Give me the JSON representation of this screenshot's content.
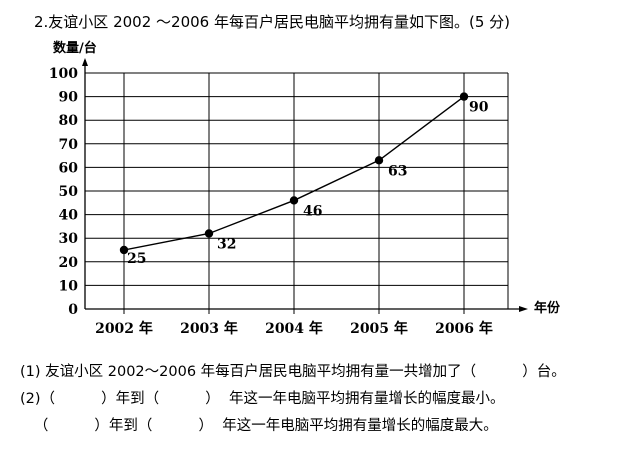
{
  "question": {
    "title": "2.友谊小区 2002 ～2006 年每百户居民电脑平均拥有量如下图。(5 分)",
    "line1": "(1) 友谊小区 2002～2006 年每百户居民电脑平均拥有量一共增加了（          ）台。",
    "line2": "(2)（          ）年到（          ）  年这一年电脑平均拥有量增长的幅度最小。",
    "line3": "   （          ）年到（          ）  年这一年电脑平均拥有量增长的幅度最大。"
  },
  "chart_data": {
    "type": "line",
    "ylabel": "数量/台",
    "xlabel": "年份",
    "categories": [
      "2002 年",
      "2003 年",
      "2004 年",
      "2005 年",
      "2006 年"
    ],
    "y_ticks": [
      "0",
      "10",
      "20",
      "30",
      "40",
      "50",
      "60",
      "70",
      "80",
      "90",
      "100"
    ],
    "ylim": [
      0,
      100
    ],
    "grid": true,
    "series": [
      {
        "values": [
          25,
          32,
          46,
          63,
          90
        ],
        "labels": [
          "25",
          "32",
          "46",
          "63",
          "90"
        ]
      }
    ]
  }
}
